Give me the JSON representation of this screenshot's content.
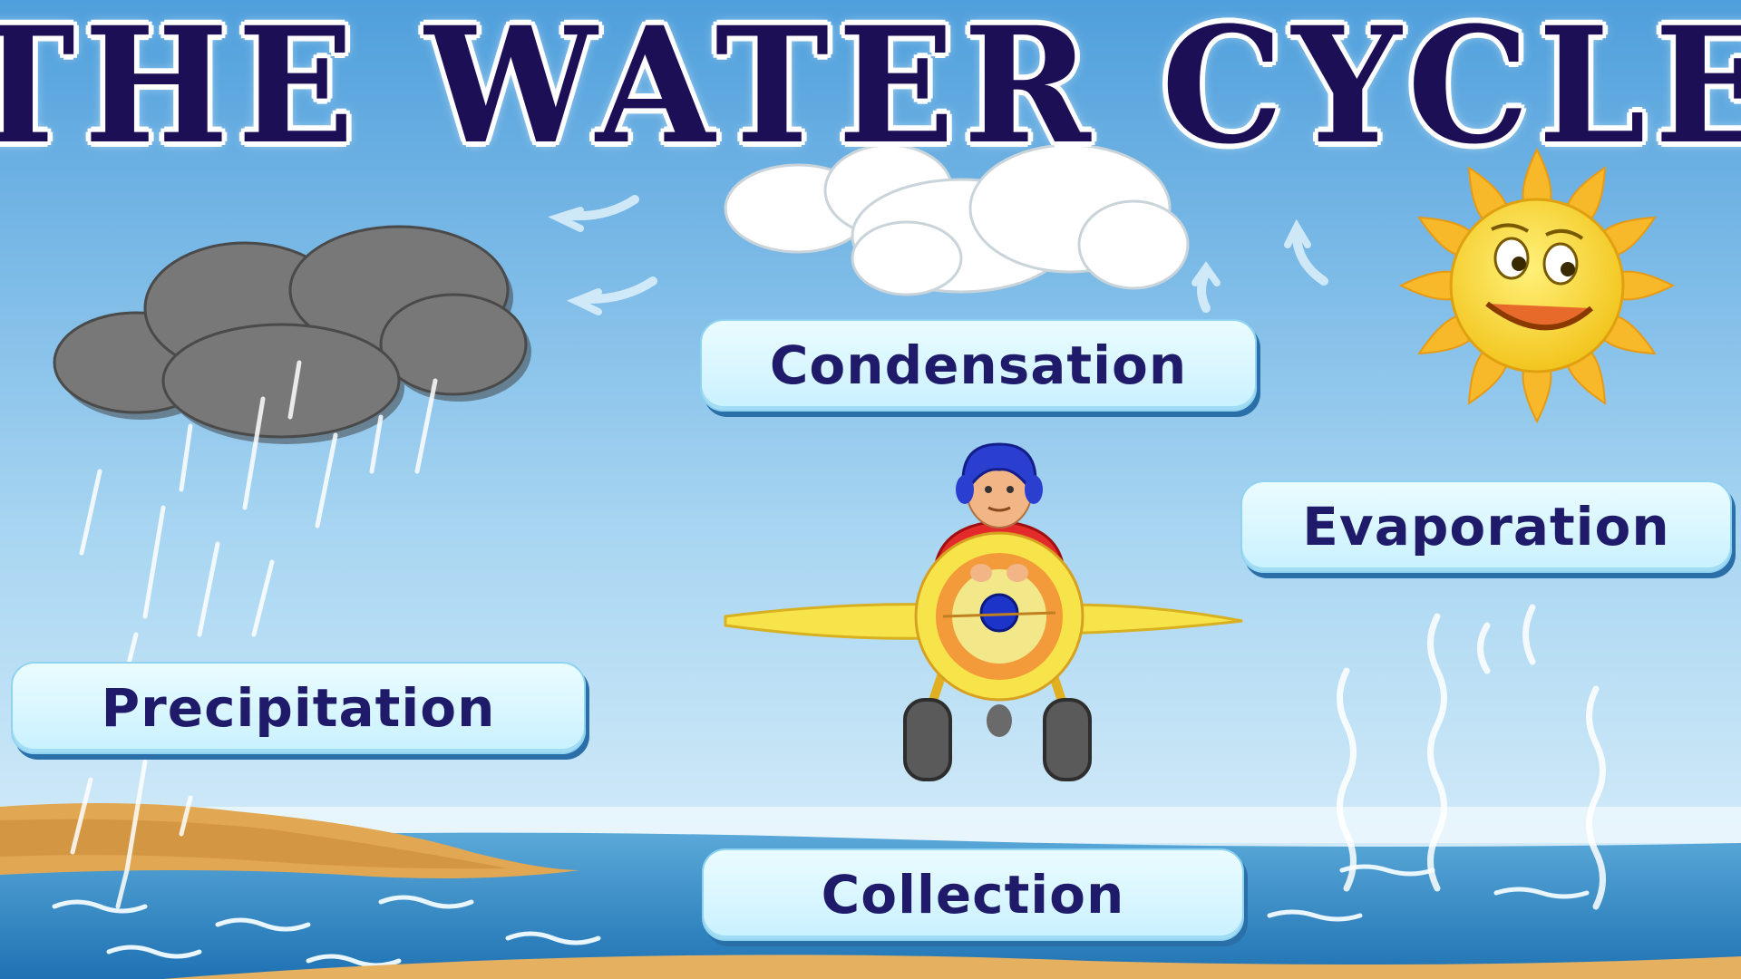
{
  "title": "THE WATER CYCLE",
  "stages": {
    "condensation": "Condensation",
    "evaporation": "Evaporation",
    "precipitation": "Precipitation",
    "collection": "Collection"
  },
  "colors": {
    "sky_top": "#4f9fdc",
    "sky_bottom": "#cfe9f7",
    "title": "#1c0f56",
    "label_text": "#1f1b6a",
    "sea": "#2f88c8",
    "sand": "#e2a752",
    "sun": "#f6d23a",
    "rain_cloud": "#777777"
  },
  "icons": {
    "sun": "smiling-sun-icon",
    "rain_cloud": "rain-cloud-icon",
    "white_cloud": "cloud-icon",
    "plane": "airplane-pilot-icon"
  }
}
